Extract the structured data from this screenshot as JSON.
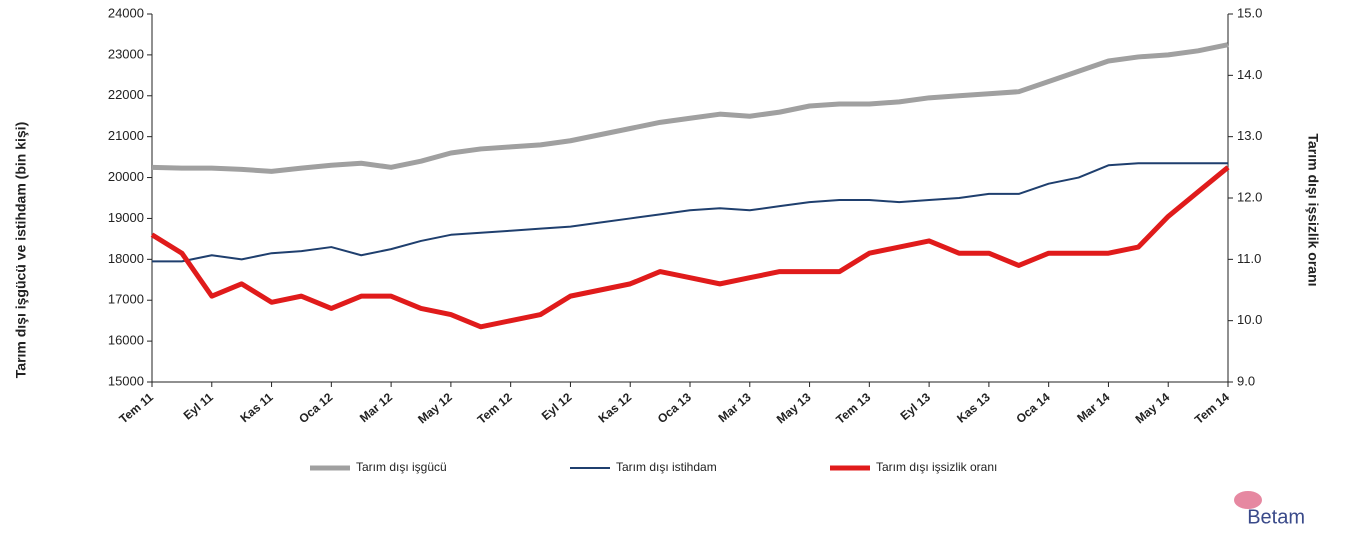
{
  "chart_data": {
    "type": "line",
    "y_axis_label": "Tarım dışı işgücü ve istihdam (bin kişi)",
    "y2_axis_label": "Tarım dışı işsizlik oranı",
    "categories": [
      "Tem 11",
      null,
      "Eyl 11",
      null,
      "Kas 11",
      null,
      "Oca 12",
      null,
      "Mar 12",
      null,
      "May 12",
      null,
      "Tem 12",
      null,
      "Eyl 12",
      null,
      "Kas 12",
      null,
      "Oca 13",
      null,
      "Mar 13",
      null,
      "May 13",
      null,
      "Tem 13",
      null,
      "Eyl 13",
      null,
      "Kas 13",
      null,
      "Oca 14",
      null,
      "Mar 14",
      null,
      "May 14",
      null,
      "Tem 14"
    ],
    "series": [
      {
        "name": "Tarım dışı işgücü",
        "color": "#a0a0a0",
        "axis": "y",
        "values": [
          20250,
          20230,
          20230,
          20200,
          20150,
          20230,
          20300,
          20350,
          20250,
          20400,
          20600,
          20700,
          20750,
          20800,
          20900,
          21050,
          21200,
          21350,
          21450,
          21550,
          21500,
          21600,
          21750,
          21800,
          21800,
          21850,
          21950,
          22000,
          22050,
          22100,
          22350,
          22600,
          22850,
          22950,
          23000,
          23100,
          23250
        ]
      },
      {
        "name": "Tarım dışı istihdam",
        "color": "#1f3f6e",
        "axis": "y",
        "values": [
          17950,
          17950,
          18100,
          18000,
          18150,
          18200,
          18300,
          18100,
          18250,
          18450,
          18600,
          18650,
          18700,
          18750,
          18800,
          18900,
          19000,
          19100,
          19200,
          19250,
          19200,
          19300,
          19400,
          19450,
          19450,
          19400,
          19450,
          19500,
          19600,
          19600,
          19850,
          20000,
          20300,
          20350,
          20350,
          20350,
          20350
        ]
      },
      {
        "name": "Tarım dışı işsizlik oranı",
        "color": "#e01b1b",
        "axis": "y2",
        "values": [
          11.4,
          11.1,
          10.4,
          10.6,
          10.3,
          10.4,
          10.2,
          10.4,
          10.4,
          10.2,
          10.1,
          9.9,
          10.0,
          10.1,
          10.4,
          10.5,
          10.6,
          10.8,
          10.7,
          10.6,
          10.7,
          10.8,
          10.8,
          10.8,
          11.1,
          11.2,
          11.3,
          11.1,
          11.1,
          10.9,
          11.1,
          11.1,
          11.1,
          11.2,
          11.7,
          12.1,
          12.5
        ]
      }
    ],
    "ylim": [
      15000,
      24000
    ],
    "yticks": [
      15000,
      16000,
      17000,
      18000,
      19000,
      20000,
      21000,
      22000,
      23000,
      24000
    ],
    "y2lim": [
      9,
      15
    ],
    "y2ticks": [
      {
        "value": 9,
        "label": "9.0"
      },
      {
        "value": 10,
        "label": "10.0"
      },
      {
        "value": 11,
        "label": "11.0"
      },
      {
        "value": 12,
        "label": "12.0"
      },
      {
        "value": 13,
        "label": "13.0"
      },
      {
        "value": 14,
        "label": "14.0"
      },
      {
        "value": 15,
        "label": "15.0"
      }
    ],
    "legend": "bottom",
    "logo": "Betam"
  }
}
